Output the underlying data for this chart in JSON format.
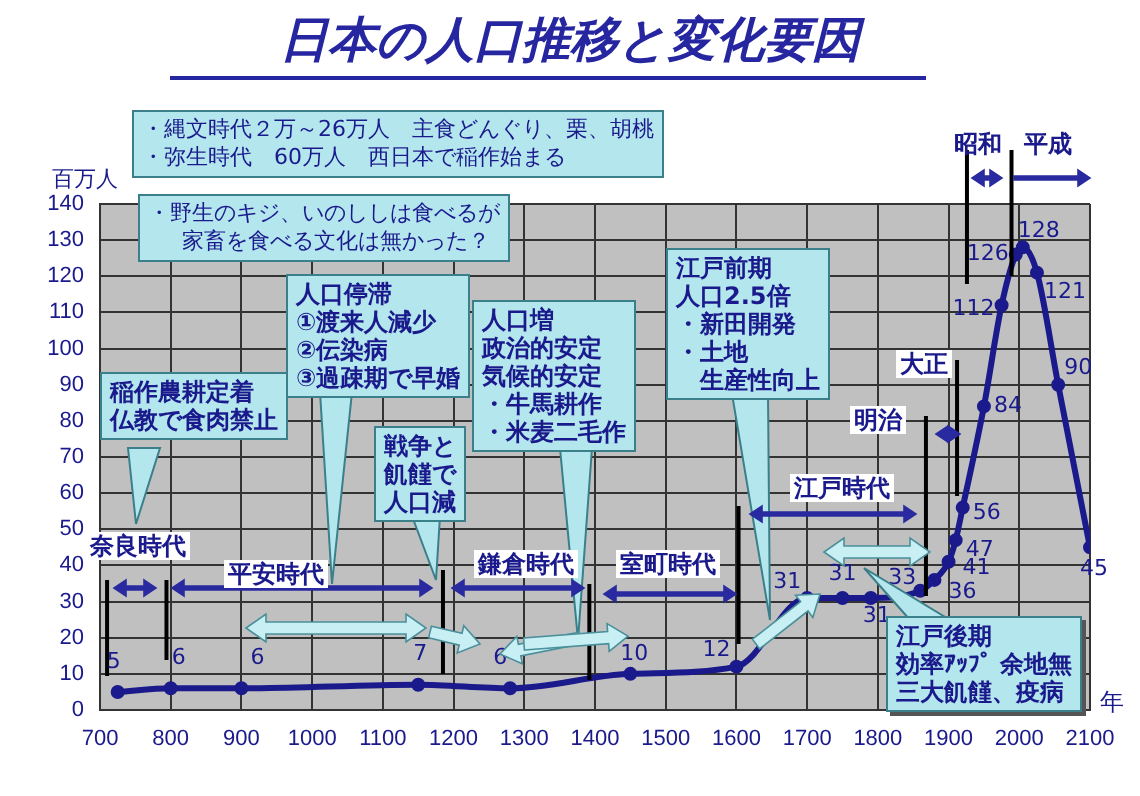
{
  "chart_data": {
    "type": "line",
    "title": "日本の人口推移と変化要因",
    "xlabel": "年",
    "ylabel": "百万人",
    "x": [
      725,
      800,
      900,
      1150,
      1280,
      1450,
      1600,
      1700,
      1750,
      1790,
      1860,
      1880,
      1900,
      1910,
      1920,
      1950,
      1975,
      1995,
      2005,
      2025,
      2055,
      2100
    ],
    "values": [
      5,
      6,
      6,
      7,
      6,
      10,
      12,
      31,
      31,
      31,
      33,
      36,
      41,
      47,
      56,
      84,
      112,
      126,
      128,
      121,
      90,
      45
    ],
    "color": "#1a1a8c",
    "marker": "circle",
    "data_labels": true,
    "grid": true,
    "xlim": [
      700,
      2100
    ],
    "ylim": [
      0,
      140
    ],
    "xticks": [
      700,
      800,
      900,
      1000,
      1100,
      1200,
      1300,
      1400,
      1500,
      1600,
      1700,
      1800,
      1900,
      2000,
      2100
    ],
    "yticks": [
      0,
      10,
      20,
      30,
      40,
      50,
      60,
      70,
      80,
      90,
      100,
      110,
      120,
      130,
      140
    ],
    "ref_lines": [
      {
        "axis": "x",
        "value": 710,
        "color": "#000000"
      },
      {
        "axis": "x",
        "value": 794,
        "color": "#000000"
      },
      {
        "axis": "x",
        "value": 1185,
        "color": "#000000"
      },
      {
        "axis": "x",
        "value": 1392,
        "color": "#000000"
      },
      {
        "axis": "x",
        "value": 1603,
        "color": "#000000"
      },
      {
        "axis": "x",
        "value": 1868,
        "color": "#000000"
      },
      {
        "axis": "x",
        "value": 1912,
        "color": "#000000"
      },
      {
        "axis": "x",
        "value": 1926,
        "color": "#000000"
      },
      {
        "axis": "x",
        "value": 1989,
        "color": "#000000"
      }
    ],
    "annotations": [
      "・縄文時代２万～26万人　主食どんぐり、栗、胡桃",
      "・野生のキジ、いのししは食べるが家畜を食べる文化は無かった？",
      "稲作農耕定着仏教で食肉禁止",
      "人口停滞①渡来人減少②伝染病③過疎期で早婚",
      "戦争と飢饉で人口減",
      "人口増政治的安定気候的安定・牛馬耕作・米麦二毛作",
      "江戸前期人口2.5倍・新田開発・土地生産性向上",
      "江戸後期効率ｱｯﾌﾟ 余地無三大飢饉、疫病",
      "昭和",
      "平成",
      "奈良時代",
      "平安時代",
      "鎌倉時代",
      "室町時代",
      "江戸時代",
      "明治",
      "大正",
      "・弥生時代　60万人　西日本で稲作始まる"
    ]
  }
}
